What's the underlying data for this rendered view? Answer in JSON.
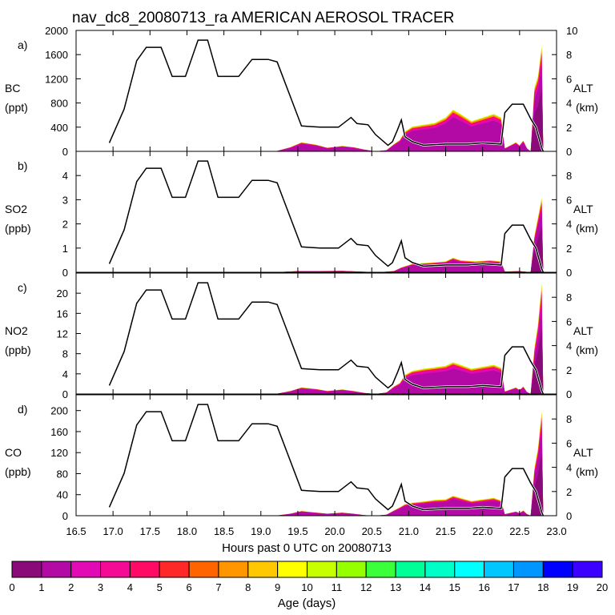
{
  "title": "nav_dc8_20080713_ra AMERICAN AEROSOL TRACER",
  "xlabel": "Hours past 0 UTC on 20080713",
  "legend_label": "Age (days)",
  "colors": {
    "ink": "#000000",
    "background": "#ffffff"
  },
  "chart_data": [
    {
      "type": "area",
      "panel_label": "a)",
      "ylabel": "BC",
      "yunits": "(ppt)",
      "ylim": [
        0,
        2000
      ],
      "yticks": [
        "0",
        "400",
        "800",
        "1200",
        "1600",
        "2000"
      ],
      "right_label": "ALT",
      "right_units": "(km)",
      "right_lim": [
        0,
        10
      ],
      "right_ticks": [
        "0",
        "2",
        "4",
        "6",
        "8",
        "10"
      ],
      "tracer_total": [
        [
          19.2,
          0
        ],
        [
          19.4,
          70
        ],
        [
          19.55,
          150
        ],
        [
          19.75,
          110
        ],
        [
          19.9,
          60
        ],
        [
          20.1,
          90
        ],
        [
          20.25,
          70
        ],
        [
          20.4,
          30
        ],
        [
          20.55,
          0
        ],
        [
          20.7,
          20
        ],
        [
          20.8,
          120
        ],
        [
          20.88,
          190
        ],
        [
          20.95,
          330
        ],
        [
          21.05,
          410
        ],
        [
          21.2,
          440
        ],
        [
          21.35,
          470
        ],
        [
          21.5,
          560
        ],
        [
          21.6,
          690
        ],
        [
          21.7,
          620
        ],
        [
          21.85,
          500
        ],
        [
          22.0,
          560
        ],
        [
          22.15,
          620
        ],
        [
          22.25,
          560
        ],
        [
          22.3,
          50
        ],
        [
          22.45,
          150
        ],
        [
          22.5,
          100
        ],
        [
          22.55,
          180
        ],
        [
          22.6,
          50
        ],
        [
          22.65,
          0
        ],
        [
          22.7,
          1050
        ],
        [
          22.75,
          1250
        ],
        [
          22.8,
          1750
        ],
        [
          22.82,
          0
        ]
      ],
      "young_fraction": 0.82,
      "altitude_km": [
        [
          16.95,
          0.7
        ],
        [
          17.15,
          3.5
        ],
        [
          17.32,
          7.5
        ],
        [
          17.45,
          8.6
        ],
        [
          17.65,
          8.6
        ],
        [
          17.8,
          6.2
        ],
        [
          17.98,
          6.2
        ],
        [
          18.15,
          9.2
        ],
        [
          18.28,
          9.2
        ],
        [
          18.42,
          6.2
        ],
        [
          18.7,
          6.2
        ],
        [
          18.88,
          7.6
        ],
        [
          19.1,
          7.6
        ],
        [
          19.22,
          7.4
        ],
        [
          19.55,
          2.1
        ],
        [
          19.8,
          2.0
        ],
        [
          20.05,
          2.0
        ],
        [
          20.22,
          2.8
        ],
        [
          20.3,
          2.3
        ],
        [
          20.45,
          2.2
        ],
        [
          20.55,
          1.4
        ],
        [
          20.72,
          0.5
        ],
        [
          20.78,
          0.8
        ],
        [
          20.85,
          1.8
        ],
        [
          20.9,
          2.6
        ],
        [
          20.95,
          1.2
        ],
        [
          21.05,
          0.8
        ],
        [
          21.2,
          0.5
        ],
        [
          21.5,
          0.6
        ],
        [
          21.8,
          0.6
        ],
        [
          22.0,
          0.7
        ],
        [
          22.25,
          0.6
        ],
        [
          22.3,
          3.2
        ],
        [
          22.4,
          3.9
        ],
        [
          22.55,
          3.9
        ],
        [
          22.65,
          2.7
        ],
        [
          22.72,
          2.0
        ],
        [
          22.8,
          0.3
        ],
        [
          22.82,
          0.0
        ]
      ]
    },
    {
      "type": "area",
      "panel_label": "b)",
      "ylabel": "SO2",
      "yunits": "(ppb)",
      "ylim": [
        0,
        5
      ],
      "yticks": [
        "0",
        "1",
        "2",
        "3",
        "4"
      ],
      "right_label": "ALT",
      "right_units": "(km)",
      "right_lim": [
        0,
        10
      ],
      "right_ticks": [
        "0",
        "2",
        "4",
        "6",
        "8"
      ],
      "tracer_total": [
        [
          19.2,
          0
        ],
        [
          19.5,
          0.05
        ],
        [
          19.75,
          0.05
        ],
        [
          20.1,
          0.06
        ],
        [
          20.4,
          0.02
        ],
        [
          20.6,
          0
        ],
        [
          20.8,
          0.05
        ],
        [
          20.9,
          0.2
        ],
        [
          21.05,
          0.35
        ],
        [
          21.3,
          0.4
        ],
        [
          21.5,
          0.45
        ],
        [
          21.6,
          0.6
        ],
        [
          21.7,
          0.5
        ],
        [
          21.9,
          0.45
        ],
        [
          22.1,
          0.5
        ],
        [
          22.25,
          0.45
        ],
        [
          22.3,
          0.03
        ],
        [
          22.5,
          0.05
        ],
        [
          22.65,
          0
        ],
        [
          22.7,
          1.5
        ],
        [
          22.75,
          2.3
        ],
        [
          22.8,
          3.1
        ],
        [
          22.82,
          0
        ]
      ],
      "young_fraction": 0.85,
      "altitude_km": [
        [
          16.95,
          0.7
        ],
        [
          17.15,
          3.5
        ],
        [
          17.32,
          7.5
        ],
        [
          17.45,
          8.6
        ],
        [
          17.65,
          8.6
        ],
        [
          17.8,
          6.2
        ],
        [
          17.98,
          6.2
        ],
        [
          18.15,
          9.2
        ],
        [
          18.28,
          9.2
        ],
        [
          18.42,
          6.2
        ],
        [
          18.7,
          6.2
        ],
        [
          18.88,
          7.6
        ],
        [
          19.1,
          7.6
        ],
        [
          19.22,
          7.4
        ],
        [
          19.55,
          2.1
        ],
        [
          19.8,
          2.0
        ],
        [
          20.05,
          2.0
        ],
        [
          20.22,
          2.8
        ],
        [
          20.3,
          2.3
        ],
        [
          20.45,
          2.2
        ],
        [
          20.55,
          1.4
        ],
        [
          20.72,
          0.5
        ],
        [
          20.78,
          0.8
        ],
        [
          20.85,
          1.8
        ],
        [
          20.9,
          2.6
        ],
        [
          20.95,
          1.2
        ],
        [
          21.05,
          0.8
        ],
        [
          21.2,
          0.5
        ],
        [
          21.5,
          0.6
        ],
        [
          21.8,
          0.6
        ],
        [
          22.0,
          0.7
        ],
        [
          22.25,
          0.6
        ],
        [
          22.3,
          3.2
        ],
        [
          22.4,
          3.9
        ],
        [
          22.55,
          3.9
        ],
        [
          22.65,
          2.7
        ],
        [
          22.72,
          2.0
        ],
        [
          22.8,
          0.3
        ],
        [
          22.82,
          0.0
        ]
      ]
    },
    {
      "type": "area",
      "panel_label": "c)",
      "ylabel": "NO2",
      "yunits": "(ppb)",
      "ylim": [
        0,
        24
      ],
      "yticks": [
        "0",
        "4",
        "8",
        "12",
        "16",
        "20"
      ],
      "right_label": "ALT",
      "right_units": "(km)",
      "right_lim": [
        0,
        10
      ],
      "right_ticks": [
        "0",
        "2",
        "4",
        "6",
        "8"
      ],
      "tracer_total": [
        [
          19.2,
          0
        ],
        [
          19.4,
          0.6
        ],
        [
          19.55,
          1.3
        ],
        [
          19.75,
          1.0
        ],
        [
          19.9,
          0.6
        ],
        [
          20.1,
          0.9
        ],
        [
          20.25,
          0.6
        ],
        [
          20.4,
          0.2
        ],
        [
          20.55,
          0
        ],
        [
          20.7,
          0.3
        ],
        [
          20.8,
          1.5
        ],
        [
          20.88,
          2.2
        ],
        [
          20.95,
          3.8
        ],
        [
          21.05,
          4.6
        ],
        [
          21.2,
          5.0
        ],
        [
          21.35,
          5.3
        ],
        [
          21.5,
          5.6
        ],
        [
          21.6,
          6.3
        ],
        [
          21.7,
          5.8
        ],
        [
          21.85,
          5.0
        ],
        [
          22.0,
          5.4
        ],
        [
          22.15,
          5.8
        ],
        [
          22.25,
          5.2
        ],
        [
          22.3,
          0.5
        ],
        [
          22.45,
          1.3
        ],
        [
          22.5,
          0.8
        ],
        [
          22.55,
          1.5
        ],
        [
          22.6,
          0.4
        ],
        [
          22.65,
          0
        ],
        [
          22.7,
          9.0
        ],
        [
          22.75,
          14.0
        ],
        [
          22.8,
          22.0
        ],
        [
          22.82,
          0
        ]
      ],
      "young_fraction": 0.8,
      "altitude_km": [
        [
          16.95,
          0.7
        ],
        [
          17.15,
          3.5
        ],
        [
          17.32,
          7.5
        ],
        [
          17.45,
          8.6
        ],
        [
          17.65,
          8.6
        ],
        [
          17.8,
          6.2
        ],
        [
          17.98,
          6.2
        ],
        [
          18.15,
          9.2
        ],
        [
          18.28,
          9.2
        ],
        [
          18.42,
          6.2
        ],
        [
          18.7,
          6.2
        ],
        [
          18.88,
          7.6
        ],
        [
          19.1,
          7.6
        ],
        [
          19.22,
          7.4
        ],
        [
          19.55,
          2.1
        ],
        [
          19.8,
          2.0
        ],
        [
          20.05,
          2.0
        ],
        [
          20.22,
          2.8
        ],
        [
          20.3,
          2.3
        ],
        [
          20.45,
          2.2
        ],
        [
          20.55,
          1.4
        ],
        [
          20.72,
          0.5
        ],
        [
          20.78,
          0.8
        ],
        [
          20.85,
          1.8
        ],
        [
          20.9,
          2.6
        ],
        [
          20.95,
          1.2
        ],
        [
          21.05,
          0.8
        ],
        [
          21.2,
          0.5
        ],
        [
          21.5,
          0.6
        ],
        [
          21.8,
          0.6
        ],
        [
          22.0,
          0.7
        ],
        [
          22.25,
          0.6
        ],
        [
          22.3,
          3.2
        ],
        [
          22.4,
          3.9
        ],
        [
          22.55,
          3.9
        ],
        [
          22.65,
          2.7
        ],
        [
          22.72,
          2.0
        ],
        [
          22.8,
          0.3
        ],
        [
          22.82,
          0.0
        ]
      ]
    },
    {
      "type": "area",
      "panel_label": "d)",
      "ylabel": "CO",
      "yunits": "(ppb)",
      "ylim": [
        0,
        230
      ],
      "yticks": [
        "0",
        "40",
        "80",
        "120",
        "160",
        "200"
      ],
      "right_label": "ALT",
      "right_units": "(km)",
      "right_lim": [
        0,
        10
      ],
      "right_ticks": [
        "0",
        "2",
        "4",
        "6",
        "8"
      ],
      "tracer_total": [
        [
          19.2,
          0
        ],
        [
          19.4,
          4
        ],
        [
          19.55,
          9
        ],
        [
          19.75,
          6
        ],
        [
          19.9,
          4
        ],
        [
          20.1,
          6
        ],
        [
          20.25,
          4
        ],
        [
          20.4,
          1
        ],
        [
          20.55,
          0
        ],
        [
          20.7,
          2
        ],
        [
          20.8,
          10
        ],
        [
          20.88,
          16
        ],
        [
          20.95,
          22
        ],
        [
          21.05,
          25
        ],
        [
          21.2,
          27
        ],
        [
          21.35,
          30
        ],
        [
          21.5,
          31
        ],
        [
          21.6,
          38
        ],
        [
          21.7,
          34
        ],
        [
          21.85,
          28
        ],
        [
          22.0,
          31
        ],
        [
          22.15,
          34
        ],
        [
          22.25,
          29
        ],
        [
          22.3,
          3
        ],
        [
          22.45,
          8
        ],
        [
          22.5,
          5
        ],
        [
          22.55,
          10
        ],
        [
          22.6,
          3
        ],
        [
          22.65,
          0
        ],
        [
          22.7,
          90
        ],
        [
          22.75,
          130
        ],
        [
          22.8,
          200
        ],
        [
          22.82,
          0
        ]
      ],
      "young_fraction": 0.84,
      "altitude_km": [
        [
          16.95,
          0.7
        ],
        [
          17.15,
          3.5
        ],
        [
          17.32,
          7.5
        ],
        [
          17.45,
          8.6
        ],
        [
          17.65,
          8.6
        ],
        [
          17.8,
          6.2
        ],
        [
          17.98,
          6.2
        ],
        [
          18.15,
          9.2
        ],
        [
          18.28,
          9.2
        ],
        [
          18.42,
          6.2
        ],
        [
          18.7,
          6.2
        ],
        [
          18.88,
          7.6
        ],
        [
          19.1,
          7.6
        ],
        [
          19.22,
          7.4
        ],
        [
          19.55,
          2.1
        ],
        [
          19.8,
          2.0
        ],
        [
          20.05,
          2.0
        ],
        [
          20.22,
          2.8
        ],
        [
          20.3,
          2.3
        ],
        [
          20.45,
          2.2
        ],
        [
          20.55,
          1.4
        ],
        [
          20.72,
          0.5
        ],
        [
          20.78,
          0.8
        ],
        [
          20.85,
          1.8
        ],
        [
          20.9,
          2.6
        ],
        [
          20.95,
          1.2
        ],
        [
          21.05,
          0.8
        ],
        [
          21.2,
          0.5
        ],
        [
          21.5,
          0.6
        ],
        [
          21.8,
          0.6
        ],
        [
          22.0,
          0.7
        ],
        [
          22.25,
          0.6
        ],
        [
          22.3,
          3.2
        ],
        [
          22.4,
          3.9
        ],
        [
          22.55,
          3.9
        ],
        [
          22.65,
          2.7
        ],
        [
          22.72,
          2.0
        ],
        [
          22.8,
          0.3
        ],
        [
          22.82,
          0.0
        ]
      ]
    }
  ],
  "xaxis": {
    "xlim": [
      16.5,
      23.0
    ],
    "ticks": [
      "16.5",
      "17.0",
      "17.5",
      "18.0",
      "18.5",
      "19.0",
      "19.5",
      "20.0",
      "20.5",
      "21.0",
      "21.5",
      "22.0",
      "22.5",
      "23.0"
    ]
  },
  "colorbar": {
    "ticks": [
      "0",
      "1",
      "2",
      "3",
      "4",
      "5",
      "6",
      "7",
      "8",
      "9",
      "10",
      "11",
      "12",
      "13",
      "14",
      "15",
      "16",
      "17",
      "18",
      "19",
      "20"
    ],
    "colors": [
      "#8b0a7a",
      "#b40aa5",
      "#e10ab4",
      "#f50a96",
      "#ff0a64",
      "#ff2828",
      "#ff6400",
      "#ff9600",
      "#ffc800",
      "#ffff00",
      "#c8ff00",
      "#96ff00",
      "#3cff3c",
      "#00ff96",
      "#00ffc8",
      "#00ffff",
      "#00c8ff",
      "#0096ff",
      "#0000ff",
      "#3c00ff"
    ]
  }
}
